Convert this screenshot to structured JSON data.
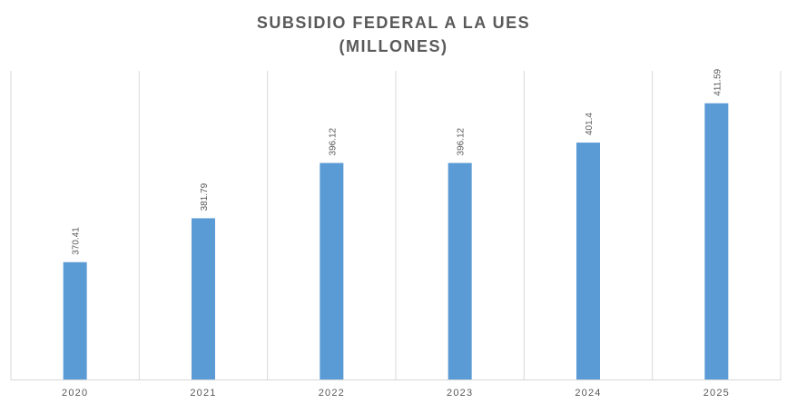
{
  "chart_data": {
    "type": "bar",
    "title_line1": "SUBSIDIO FEDERAL A LA UES",
    "title_line2": "(MILLONES)",
    "categories": [
      "2020",
      "2021",
      "2022",
      "2023",
      "2024",
      "2025"
    ],
    "values": [
      370.41,
      381.79,
      396.12,
      396.12,
      401.4,
      411.59
    ],
    "value_labels": [
      "370.41",
      "381.79",
      "396.12",
      "396.12",
      "401.4",
      "411.59"
    ],
    "xlabel": "",
    "ylabel": "",
    "ylim": [
      340,
      420
    ],
    "grid": "vertical",
    "legend": "none",
    "colors": {
      "bar": "#5b9bd5",
      "grid": "#d9d9d9",
      "text": "#595959"
    }
  }
}
